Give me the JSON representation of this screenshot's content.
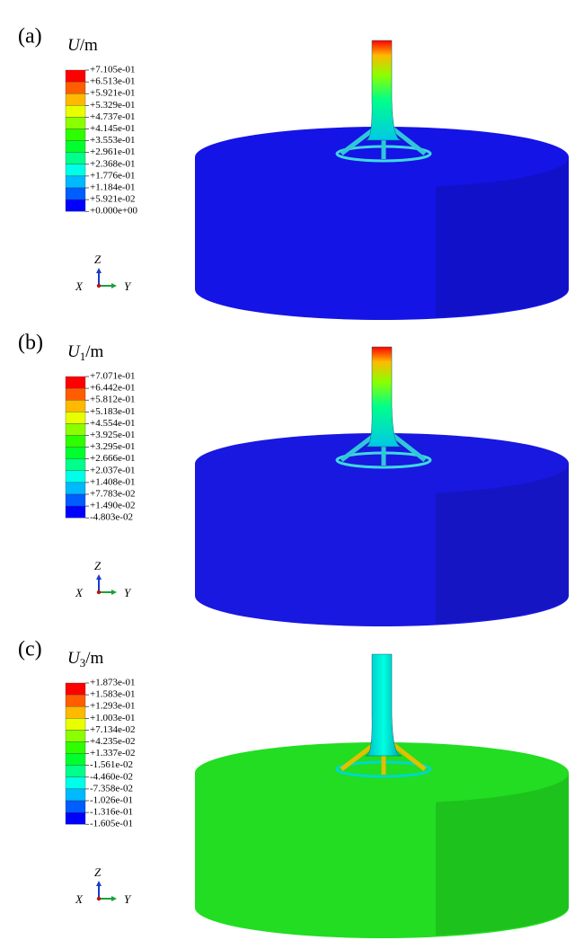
{
  "panels": [
    {
      "label": "(a)",
      "symbol": "U",
      "subscript": "",
      "unit": "/m",
      "legend": [
        "+7.105e-01",
        "+6.513e-01",
        "+5.921e-01",
        "+5.329e-01",
        "+4.737e-01",
        "+4.145e-01",
        "+3.553e-01",
        "+2.961e-01",
        "+2.368e-01",
        "+1.776e-01",
        "+1.184e-01",
        "+5.921e-02",
        "+0.000e+00"
      ],
      "model_color": "#1414e6",
      "axes": {
        "z": "Z",
        "x": "X",
        "y": "Y"
      }
    },
    {
      "label": "(b)",
      "symbol": "U",
      "subscript": "1",
      "unit": "/m",
      "legend": [
        "+7.071e-01",
        "+6.442e-01",
        "+5.812e-01",
        "+5.183e-01",
        "+4.554e-01",
        "+3.925e-01",
        "+3.295e-01",
        "+2.666e-01",
        "+2.037e-01",
        "+1.408e-01",
        "+7.783e-02",
        "+1.490e-02",
        "-4.803e-02"
      ],
      "model_color": "#1818e0",
      "axes": {
        "z": "Z",
        "x": "X",
        "y": "Y"
      }
    },
    {
      "label": "(c)",
      "symbol": "U",
      "subscript": "3",
      "unit": "/m",
      "legend": [
        "+1.873e-01",
        "+1.583e-01",
        "+1.293e-01",
        "+1.003e-01",
        "+7.134e-02",
        "+4.235e-02",
        "+1.337e-02",
        "-1.561e-02",
        "-4.460e-02",
        "-7.358e-02",
        "-1.026e-01",
        "-1.316e-01",
        "-1.605e-01"
      ],
      "model_color": "#22dd22",
      "axes": {
        "z": "Z",
        "x": "X",
        "y": "Y"
      }
    }
  ],
  "legend_colors": [
    "#ff0000",
    "#ff5d00",
    "#ffb900",
    "#e9ff00",
    "#8bff00",
    "#2eff00",
    "#00ff2e",
    "#00ff8b",
    "#00ffe8",
    "#00b9ff",
    "#005dff",
    "#0000ff"
  ]
}
